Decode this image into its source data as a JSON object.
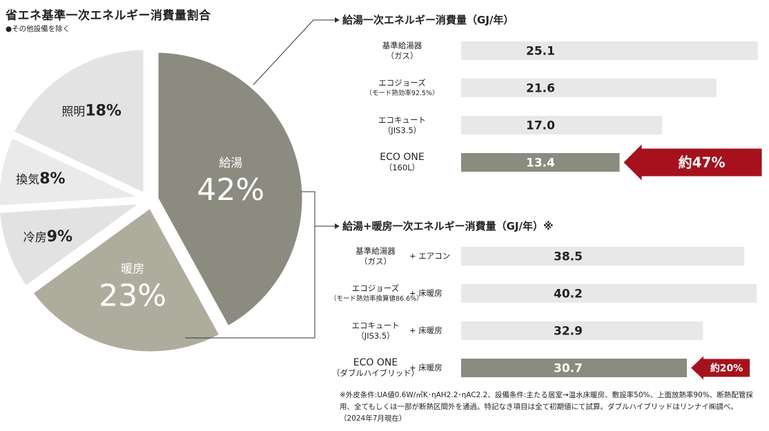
{
  "pie": {
    "title": "省エネ基準一次エネルギー消費量割合",
    "note": "●その他設備を除く"
  },
  "chart_data": [
    {
      "type": "pie",
      "title": "省エネ基準一次エネルギー消費量割合",
      "slices": [
        {
          "name": "給湯",
          "value": 42,
          "display": "42%",
          "color": "#8c8b7f"
        },
        {
          "name": "暖房",
          "value": 23,
          "display": "23%",
          "color": "#aeac9c"
        },
        {
          "name": "冷房",
          "value": 9,
          "display": "9%",
          "color": "#e2e2e2"
        },
        {
          "name": "換気",
          "value": 8,
          "display": "8%",
          "color": "#eaeaea"
        },
        {
          "name": "照明",
          "value": 18,
          "display": "18%",
          "color": "#e3e3e3"
        }
      ]
    },
    {
      "type": "bar",
      "orientation": "horizontal",
      "title": "給湯一次エネルギー消費量（GJ/年）",
      "categories": [
        {
          "line1": "基準給湯器",
          "line2": "（ガス）"
        },
        {
          "line1": "エコジョーズ",
          "line2": "（モード熱効率92.5%）"
        },
        {
          "line1": "エコキュート",
          "line2": "（JIS3.5）"
        },
        {
          "line1": "ECO ONE",
          "line2": "（160L）"
        }
      ],
      "values": [
        25.1,
        21.6,
        17.0,
        13.4
      ],
      "value_labels": [
        "25.1",
        "21.6",
        "17.0",
        "13.4"
      ],
      "highlight_index": 3,
      "annotation": "約47%"
    },
    {
      "type": "bar",
      "orientation": "horizontal",
      "title": "給湯+暖房一次エネルギー消費量（GJ/年）※",
      "categories": [
        {
          "line1": "基準給湯器",
          "line2": "（ガス）",
          "plus": "+ エアコン"
        },
        {
          "line1": "エコジョーズ",
          "line2": "（モード熱効率換算値86.6%）",
          "plus": "+ 床暖房"
        },
        {
          "line1": "エコキュート",
          "line2": "（JIS3.5）",
          "plus": "+ 床暖房"
        },
        {
          "line1": "ECO ONE",
          "line2": "（ダブルハイブリッド）",
          "plus": "+ 床暖房"
        }
      ],
      "values": [
        38.5,
        40.2,
        32.9,
        30.7
      ],
      "value_labels": [
        "38.5",
        "40.2",
        "32.9",
        "30.7"
      ],
      "highlight_index": 3,
      "annotation": "約20%"
    }
  ],
  "colors": {
    "bar": "#e8e8e8",
    "bar_highlight": "#8c8b7f",
    "arrow": "#a5121d",
    "dark_slice": "#8c8b7f",
    "mid_slice": "#aeac9c"
  },
  "footnote": "※外皮条件:UA値0.6W/㎡K･ηAH2.2･ηAC2.2、設備条件:主たる居室→温水床暖房、敷設率50%、上面放熱率90%、断熱配管採用、全てもしくは一部が断熱区間外を通過。特記なき項目は全て初期値にて試算。ダブルハイブリッドはリンナイ㈱調べ。（2024年7月現在）"
}
